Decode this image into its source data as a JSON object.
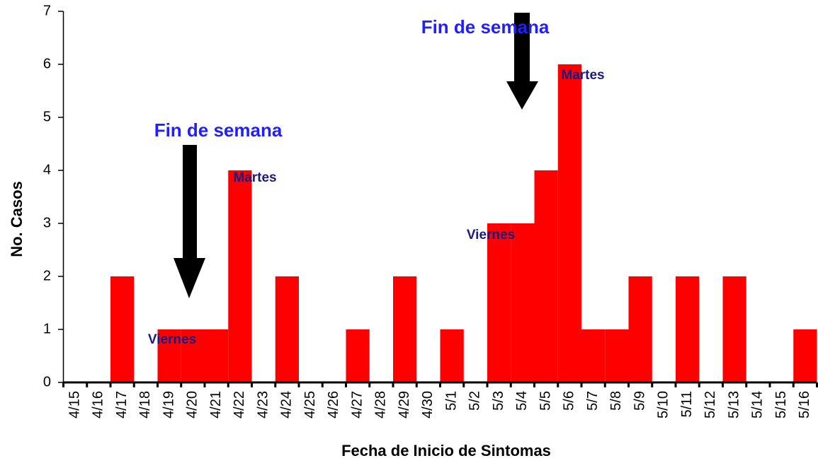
{
  "chart_data": {
    "type": "bar",
    "xlabel": "Fecha de Inicio de Sintomas",
    "ylabel": "No. Casos",
    "categories": [
      "4/15",
      "4/16",
      "4/17",
      "4/18",
      "4/19",
      "4/20",
      "4/21",
      "4/22",
      "4/23",
      "4/24",
      "4/25",
      "4/26",
      "4/27",
      "4/28",
      "4/29",
      "4/30",
      "5/1",
      "5/2",
      "5/3",
      "5/4",
      "5/5",
      "5/6",
      "5/7",
      "5/8",
      "5/9",
      "5/10",
      "5/11",
      "5/12",
      "5/13",
      "5/14",
      "5/15",
      "5/16"
    ],
    "values": [
      0,
      0,
      2,
      0,
      1,
      1,
      1,
      4,
      0,
      2,
      0,
      0,
      1,
      0,
      2,
      0,
      1,
      0,
      3,
      3,
      4,
      6,
      1,
      1,
      2,
      0,
      2,
      0,
      2,
      0,
      0,
      1
    ],
    "color": "#ff0000",
    "ylim": [
      0,
      7
    ],
    "yticks": [
      0,
      1,
      2,
      3,
      4,
      5,
      6,
      7
    ],
    "grid": false,
    "annotations": [
      "Fin de semana",
      "Fin de semana",
      "Martes",
      "Martes",
      "Viernes",
      "Viernes"
    ]
  }
}
